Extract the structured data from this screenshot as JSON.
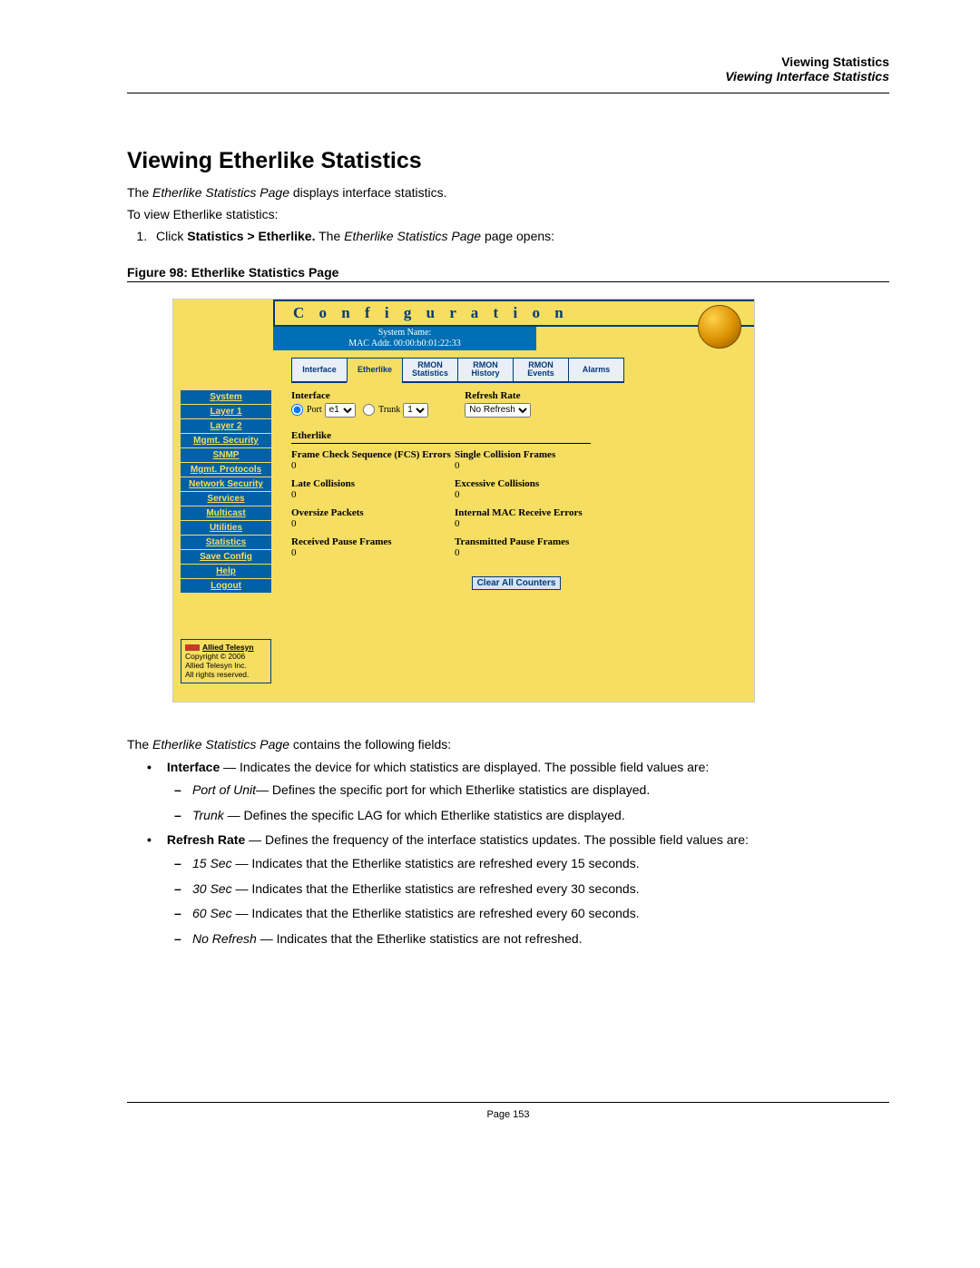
{
  "header": {
    "chapter": "Viewing Statistics",
    "section": "Viewing Interface Statistics"
  },
  "title": "Viewing Etherlike Statistics",
  "intro_prefix": "The ",
  "intro_em": "Etherlike Statistics Page",
  "intro_suffix": " displays interface statistics.",
  "lead": "To view Etherlike statistics:",
  "step_prefix": "Click ",
  "step_bold": "Statistics > Etherlike.",
  "step_mid": " The ",
  "step_em": "Etherlike Statistics Page",
  "step_suffix": " page opens:",
  "figure_caption": "Figure 98:  Etherlike Statistics Page",
  "shot": {
    "banner": "C o n f i g u r a t i o n",
    "sysinfo_line1": "System Name:",
    "sysinfo_line2": "MAC Addr.  00:00:b0:01:22:33",
    "tabs": [
      "Interface",
      "Etherlike",
      "RMON Statistics",
      "RMON History",
      "RMON Events",
      "Alarms"
    ],
    "selected_tab_index": 1,
    "sidebar": [
      "System",
      "Layer 1",
      "Layer 2",
      "Mgmt. Security",
      "SNMP",
      "Mgmt. Protocols",
      "Network Security",
      "Services",
      "Multicast",
      "Utilities",
      "Statistics",
      "Save Config",
      "Help",
      "Logout"
    ],
    "copyright_brand": "Allied Telesyn",
    "copyright_line1": "Copyright © 2006",
    "copyright_line2": "Allied Telesyn Inc.",
    "copyright_line3": "All rights reserved.",
    "iface_label": "Interface",
    "refresh_label": "Refresh Rate",
    "port_label": "Port",
    "port_value": "e1",
    "trunk_label": "Trunk",
    "trunk_value": "1",
    "refresh_value": "No Refresh",
    "eth_section": "Etherlike",
    "stats": [
      {
        "label": "Frame Check Sequence (FCS) Errors",
        "value": "0"
      },
      {
        "label": "Single Collision Frames",
        "value": "0"
      },
      {
        "label": "Late Collisions",
        "value": "0"
      },
      {
        "label": "Excessive Collisions",
        "value": "0"
      },
      {
        "label": "Oversize Packets",
        "value": "0"
      },
      {
        "label": "Internal MAC Receive Errors",
        "value": "0"
      },
      {
        "label": "Received Pause Frames",
        "value": "0"
      },
      {
        "label": "Transmitted Pause Frames",
        "value": "0"
      }
    ],
    "clear_btn": "Clear All Counters"
  },
  "after_prefix": "The ",
  "after_em": "Etherlike Statistics Page",
  "after_suffix": " contains the following fields:",
  "field_iface_name": "Interface",
  "field_iface_desc": " — Indicates the device for which statistics are displayed. The possible field values are:",
  "sub_port_name": "Port of Unit",
  "sub_port_desc": "— Defines the specific port for which Etherlike statistics are displayed.",
  "sub_trunk_name": "Trunk",
  "sub_trunk_desc": " — Defines the specific LAG for which Etherlike statistics are displayed.",
  "field_refresh_name": "Refresh Rate",
  "field_refresh_desc": " — Defines the frequency of the interface statistics updates. The possible field values are:",
  "sub_15_name": "15 Sec",
  "sub_15_desc": " — Indicates that the Etherlike statistics are refreshed every 15 seconds.",
  "sub_30_name": "30 Sec",
  "sub_30_desc": " — Indicates that the Etherlike statistics are refreshed every 30 seconds.",
  "sub_60_name": "60 Sec",
  "sub_60_desc": " — Indicates that the Etherlike statistics are refreshed every 60 seconds.",
  "sub_nr_name": "No Refresh",
  "sub_nr_desc": " — Indicates that the Etherlike statistics are not refreshed.",
  "page_number": "Page 153"
}
